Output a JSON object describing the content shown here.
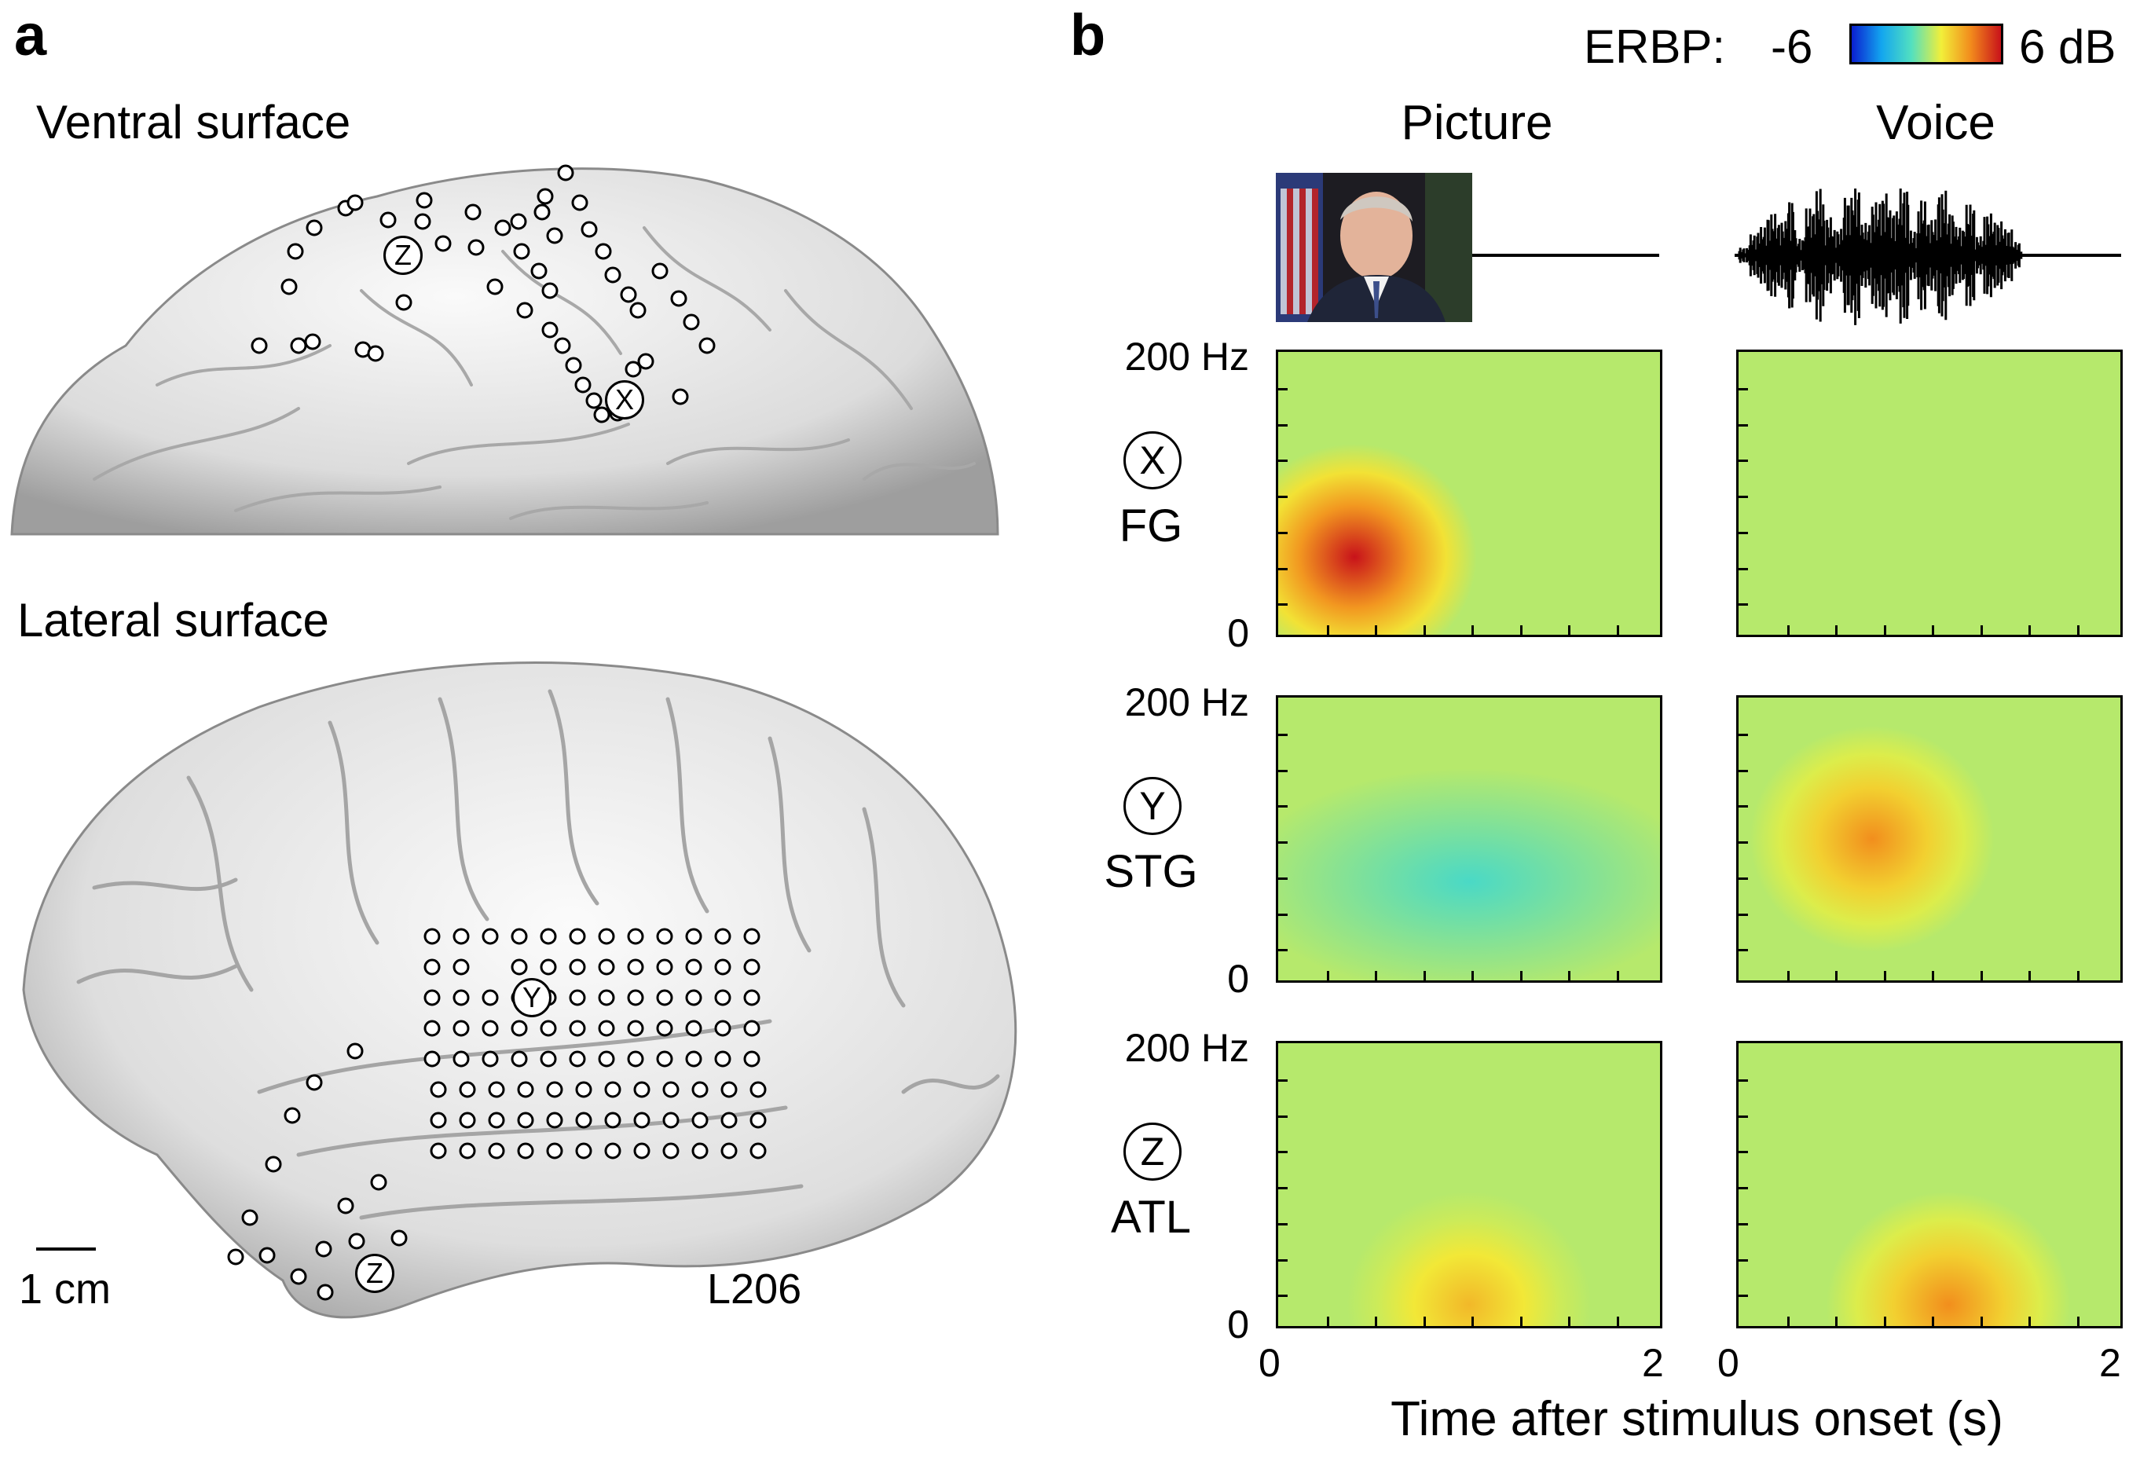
{
  "panel_a": {
    "letter": "a",
    "ventral_title": "Ventral surface",
    "lateral_title": "Lateral surface",
    "scale_label": "1 cm",
    "subject_id": "L206",
    "electrode_labels": {
      "x": "X",
      "y": "Y",
      "z": "Z"
    }
  },
  "panel_b": {
    "letter": "b",
    "colorbar": {
      "label": "ERBP:",
      "min_label": "-6",
      "max_label": "6 dB",
      "colors": [
        "#0a1fd0",
        "#13a6ef",
        "#52e0c0",
        "#f2ef39",
        "#f28a1c",
        "#c8121a"
      ]
    },
    "columns": [
      "Picture",
      "Voice"
    ],
    "rows": [
      {
        "circle": "X",
        "region": "FG",
        "y_top": "200 Hz",
        "y_bottom": "0"
      },
      {
        "circle": "Y",
        "region": "STG",
        "y_top": "200 Hz",
        "y_bottom": "0"
      },
      {
        "circle": "Z",
        "region": "ATL",
        "y_top": "200 Hz",
        "y_bottom": "0"
      }
    ],
    "x_ticks": [
      "0",
      "2"
    ],
    "x_axis_label": "Time after stimulus onset (s)"
  },
  "chart_data": {
    "type": "heatmap",
    "x_range": [
      0,
      2
    ],
    "y_range": [
      0,
      200
    ],
    "color_range": [
      -6,
      6
    ],
    "color_unit": "dB",
    "panels": [
      {
        "row": "FG",
        "column": "Picture",
        "peak_dB": 6,
        "peak_time_s": 0.4,
        "peak_freq_hz": 55
      },
      {
        "row": "FG",
        "column": "Voice",
        "peak_dB": 0,
        "peak_time_s": null,
        "peak_freq_hz": null
      },
      {
        "row": "STG",
        "column": "Picture",
        "peak_dB": -1,
        "peak_time_s": null,
        "peak_freq_hz": null
      },
      {
        "row": "STG",
        "column": "Voice",
        "peak_dB": 3.5,
        "peak_time_s": 0.7,
        "peak_freq_hz": 100
      },
      {
        "row": "ATL",
        "column": "Picture",
        "peak_dB": 2.5,
        "peak_time_s": 1.0,
        "peak_freq_hz": 15
      },
      {
        "row": "ATL",
        "column": "Voice",
        "peak_dB": 3.5,
        "peak_time_s": 1.1,
        "peak_freq_hz": 15
      }
    ]
  }
}
